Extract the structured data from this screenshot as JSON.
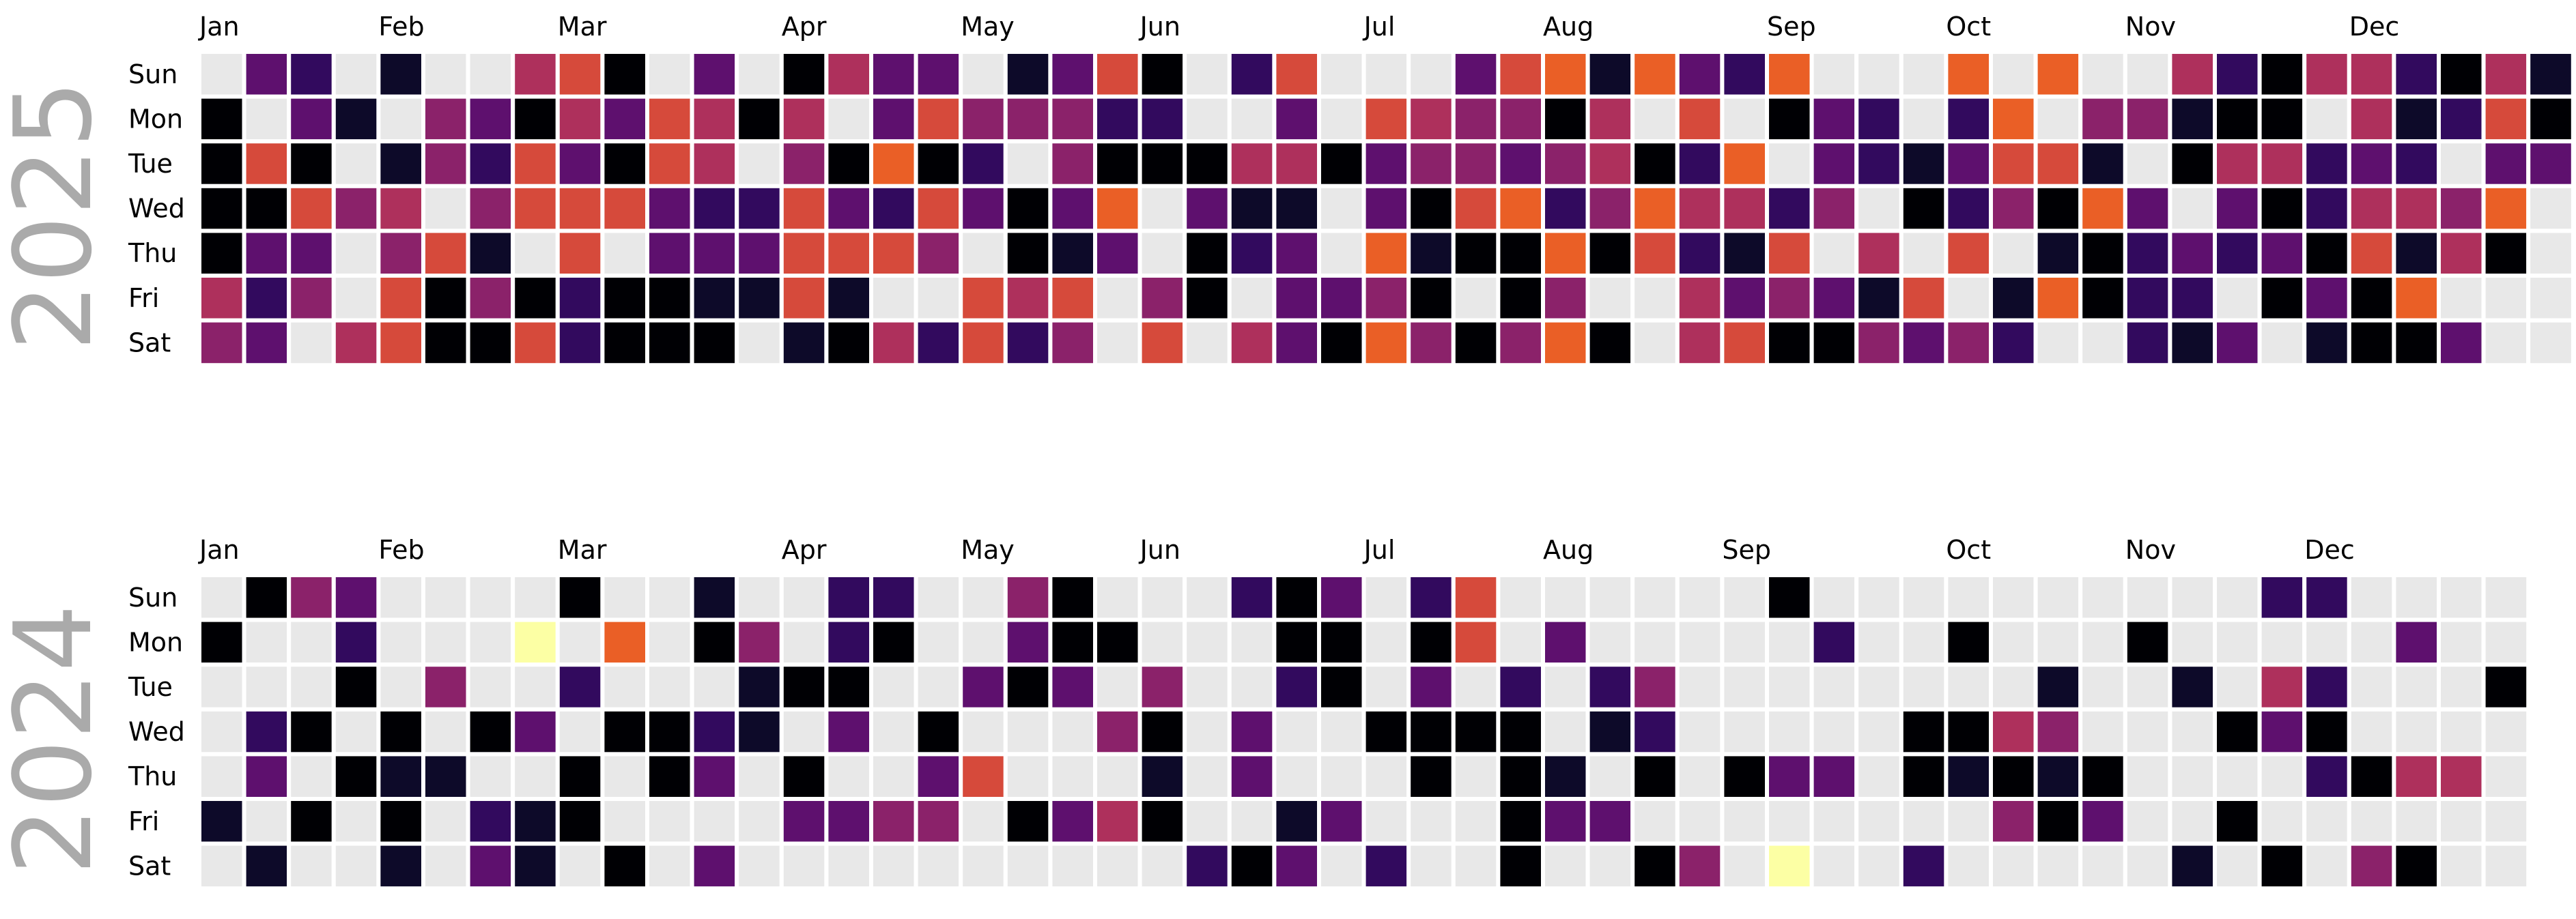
{
  "chart_data": {
    "type": "heatmap",
    "subtype": "calendar",
    "colormap": "inferno",
    "empty_color": "#e8e8e8",
    "grid": false,
    "legend": false,
    "day_labels": [
      "Sun",
      "Mon",
      "Tue",
      "Wed",
      "Thu",
      "Fri",
      "Sat"
    ],
    "month_labels": [
      "Jan",
      "Feb",
      "Mar",
      "Apr",
      "May",
      "Jun",
      "Jul",
      "Aug",
      "Sep",
      "Oct",
      "Nov",
      "Dec"
    ],
    "value_scale": "0 = darkest (black), 9 = lightest (pale yellow); null = no data (grey)",
    "years": [
      {
        "year": "2025",
        "month_week_index": [
          0,
          4,
          8,
          13,
          17,
          21,
          26,
          30,
          35,
          39,
          43,
          48
        ],
        "weeks": [
          [
            null,
            0,
            0,
            0,
            0,
            5,
            4
          ],
          [
            3,
            null,
            6,
            0,
            3,
            2,
            3
          ],
          [
            2,
            3,
            0,
            6,
            3,
            4,
            null
          ],
          [
            null,
            1,
            null,
            4,
            null,
            null,
            5
          ],
          [
            1,
            null,
            1,
            5,
            4,
            6,
            6
          ],
          [
            null,
            4,
            4,
            null,
            6,
            0,
            0
          ],
          [
            null,
            3,
            2,
            4,
            1,
            4,
            0
          ],
          [
            5,
            0,
            6,
            6,
            null,
            0,
            6
          ],
          [
            6,
            5,
            3,
            6,
            6,
            2,
            2
          ],
          [
            0,
            3,
            0,
            6,
            null,
            0,
            0
          ],
          [
            null,
            6,
            6,
            3,
            3,
            0,
            0
          ],
          [
            3,
            5,
            5,
            2,
            3,
            1,
            0
          ],
          [
            null,
            0,
            null,
            2,
            3,
            1,
            null
          ],
          [
            0,
            5,
            4,
            6,
            6,
            6,
            1
          ],
          [
            5,
            null,
            0,
            3,
            6,
            1,
            0
          ],
          [
            3,
            3,
            7,
            2,
            6,
            null,
            5
          ],
          [
            3,
            6,
            0,
            6,
            4,
            null,
            2
          ],
          [
            null,
            4,
            2,
            3,
            null,
            6,
            6
          ],
          [
            1,
            4,
            null,
            0,
            0,
            5,
            2
          ],
          [
            3,
            4,
            4,
            3,
            1,
            6,
            4
          ],
          [
            6,
            2,
            0,
            7,
            3,
            null,
            null
          ],
          [
            0,
            2,
            0,
            null,
            null,
            4,
            6
          ],
          [
            null,
            null,
            0,
            3,
            0,
            0,
            null
          ],
          [
            2,
            null,
            5,
            1,
            2,
            null,
            5
          ],
          [
            6,
            3,
            5,
            1,
            3,
            3,
            3
          ],
          [
            null,
            null,
            0,
            null,
            null,
            3,
            0
          ],
          [
            null,
            6,
            3,
            3,
            7,
            4,
            7
          ],
          [
            null,
            5,
            4,
            0,
            1,
            0,
            4
          ],
          [
            3,
            4,
            4,
            6,
            0,
            null,
            0
          ],
          [
            6,
            4,
            3,
            7,
            0,
            0,
            4
          ],
          [
            7,
            0,
            4,
            2,
            7,
            4,
            7
          ],
          [
            1,
            5,
            5,
            4,
            0,
            null,
            0
          ],
          [
            7,
            null,
            0,
            7,
            6,
            null,
            null
          ],
          [
            3,
            6,
            2,
            5,
            2,
            5,
            5
          ],
          [
            2,
            null,
            7,
            5,
            1,
            3,
            6
          ],
          [
            7,
            0,
            null,
            2,
            6,
            4,
            0
          ],
          [
            null,
            3,
            3,
            4,
            null,
            3,
            0
          ],
          [
            null,
            2,
            2,
            null,
            5,
            1,
            4
          ],
          [
            null,
            null,
            1,
            0,
            null,
            6,
            3
          ],
          [
            7,
            2,
            3,
            2,
            6,
            null,
            4
          ],
          [
            null,
            7,
            6,
            4,
            null,
            1,
            2
          ],
          [
            7,
            null,
            6,
            0,
            1,
            7,
            null
          ],
          [
            null,
            4,
            1,
            7,
            0,
            0,
            null
          ],
          [
            null,
            4,
            null,
            3,
            2,
            2,
            2
          ],
          [
            5,
            1,
            0,
            null,
            3,
            2,
            1
          ],
          [
            2,
            0,
            5,
            3,
            2,
            null,
            3
          ],
          [
            0,
            0,
            5,
            0,
            3,
            0,
            null
          ],
          [
            5,
            null,
            2,
            2,
            0,
            3,
            1
          ],
          [
            5,
            5,
            3,
            5,
            6,
            0,
            0
          ],
          [
            2,
            1,
            2,
            5,
            1,
            7,
            0
          ],
          [
            0,
            2,
            null,
            4,
            5,
            null,
            3
          ],
          [
            5,
            6,
            3,
            7,
            0,
            null,
            null
          ],
          [
            1,
            0,
            3,
            null,
            null,
            null,
            null
          ]
        ]
      },
      {
        "year": "2024",
        "month_week_index": [
          0,
          4,
          8,
          13,
          17,
          21,
          26,
          30,
          34,
          39,
          43,
          47
        ],
        "weeks": [
          [
            null,
            0,
            null,
            null,
            null,
            1,
            null
          ],
          [
            0,
            null,
            null,
            2,
            3,
            null,
            1
          ],
          [
            4,
            null,
            null,
            0,
            null,
            0,
            null
          ],
          [
            3,
            2,
            0,
            null,
            0,
            null,
            null
          ],
          [
            null,
            null,
            null,
            0,
            1,
            0,
            1
          ],
          [
            null,
            null,
            4,
            null,
            1,
            null,
            null
          ],
          [
            null,
            null,
            null,
            0,
            null,
            2,
            3
          ],
          [
            null,
            9,
            null,
            3,
            null,
            1,
            1
          ],
          [
            0,
            null,
            2,
            null,
            0,
            0,
            null
          ],
          [
            null,
            7,
            null,
            0,
            null,
            null,
            0
          ],
          [
            null,
            null,
            null,
            0,
            0,
            null,
            null
          ],
          [
            1,
            0,
            null,
            2,
            3,
            null,
            3
          ],
          [
            null,
            4,
            1,
            1,
            null,
            null,
            null
          ],
          [
            null,
            null,
            0,
            null,
            0,
            3,
            null
          ],
          [
            2,
            2,
            0,
            3,
            null,
            3,
            null
          ],
          [
            2,
            0,
            null,
            null,
            null,
            4,
            null
          ],
          [
            null,
            null,
            null,
            0,
            3,
            4,
            null
          ],
          [
            null,
            null,
            3,
            null,
            6,
            null,
            null
          ],
          [
            4,
            3,
            0,
            null,
            null,
            0,
            null
          ],
          [
            0,
            0,
            3,
            null,
            null,
            3,
            null
          ],
          [
            null,
            0,
            null,
            4,
            null,
            5,
            null
          ],
          [
            null,
            null,
            4,
            0,
            1,
            0,
            null
          ],
          [
            null,
            null,
            null,
            null,
            null,
            null,
            2
          ],
          [
            2,
            null,
            null,
            3,
            3,
            null,
            0
          ],
          [
            0,
            0,
            2,
            null,
            null,
            1,
            3
          ],
          [
            3,
            0,
            0,
            null,
            null,
            3,
            null
          ],
          [
            null,
            null,
            null,
            0,
            null,
            null,
            2
          ],
          [
            2,
            0,
            3,
            0,
            0,
            null,
            null
          ],
          [
            6,
            6,
            null,
            0,
            null,
            null,
            null
          ],
          [
            null,
            null,
            2,
            0,
            0,
            0,
            0
          ],
          [
            null,
            3,
            null,
            null,
            1,
            3,
            null
          ],
          [
            null,
            null,
            2,
            1,
            null,
            3,
            null
          ],
          [
            null,
            null,
            4,
            2,
            0,
            null,
            0
          ],
          [
            null,
            null,
            null,
            null,
            null,
            null,
            4
          ],
          [
            null,
            null,
            null,
            null,
            0,
            null,
            null
          ],
          [
            0,
            null,
            null,
            null,
            3,
            null,
            9
          ],
          [
            null,
            2,
            null,
            null,
            3,
            null,
            null
          ],
          [
            null,
            null,
            null,
            null,
            null,
            null,
            null
          ],
          [
            null,
            null,
            null,
            0,
            0,
            null,
            2
          ],
          [
            null,
            0,
            null,
            0,
            1,
            null,
            null
          ],
          [
            null,
            null,
            null,
            5,
            0,
            4,
            null
          ],
          [
            null,
            null,
            1,
            4,
            1,
            0,
            null
          ],
          [
            null,
            null,
            null,
            null,
            0,
            3,
            null
          ],
          [
            null,
            0,
            null,
            null,
            null,
            null,
            null
          ],
          [
            null,
            null,
            1,
            null,
            null,
            null,
            1
          ],
          [
            null,
            null,
            null,
            0,
            null,
            0,
            null
          ],
          [
            2,
            null,
            5,
            3,
            null,
            null,
            0
          ],
          [
            2,
            null,
            2,
            0,
            2,
            null,
            null
          ],
          [
            null,
            null,
            null,
            null,
            0,
            null,
            4
          ],
          [
            null,
            3,
            null,
            null,
            5,
            null,
            0
          ],
          [
            null,
            null,
            null,
            null,
            5,
            null,
            null
          ],
          [
            null,
            null,
            0,
            null,
            null,
            null,
            null
          ]
        ]
      }
    ]
  }
}
